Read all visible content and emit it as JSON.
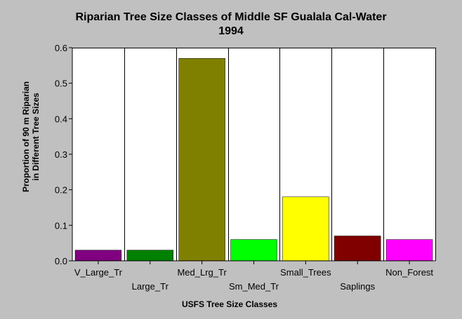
{
  "chart_data": {
    "type": "bar",
    "title_lines": [
      "Riparian Tree Size Classes of Middle SF Gualala Cal-Water",
      "1994"
    ],
    "xlabel": "USFS Tree Size Classes",
    "ylabel_lines": [
      "Proportion of 90 m Riparian",
      "in Different Tree Sizes"
    ],
    "categories": [
      "V_Large_Tr",
      "Large_Tr",
      "Med_Lrg_Tr",
      "Sm_Med_Tr",
      "Small_Trees",
      "Saplings",
      "Non_Forest"
    ],
    "values": [
      0.03,
      0.03,
      0.57,
      0.06,
      0.18,
      0.07,
      0.06
    ],
    "colors": [
      "#800080",
      "#008000",
      "#808000",
      "#00ff00",
      "#ffff00",
      "#800000",
      "#ff00ff"
    ],
    "ylim": [
      0,
      0.6
    ],
    "yticks": [
      "0.0",
      "0.1",
      "0.2",
      "0.3",
      "0.4",
      "0.5",
      "0.6"
    ],
    "grid": true,
    "legend": "none"
  }
}
